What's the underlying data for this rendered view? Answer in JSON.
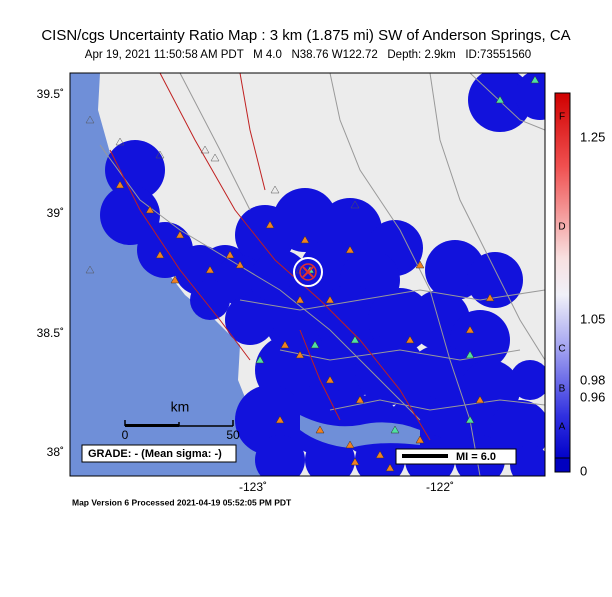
{
  "header": {
    "title": "CISN/cgs Uncertainty Ratio Map : 3 km (1.875 mi) SW of Anderson Springs, CA",
    "subtitle": "Apr 19, 2021 11:50:58 AM PDT   M 4.0   N38.76 W122.72   Depth: 2.9km   ID:73551560"
  },
  "map": {
    "lat_labels": [
      "39.5˚",
      "39˚",
      "38.5˚",
      "38˚"
    ],
    "lon_labels": [
      "-123˚",
      "-122˚"
    ],
    "scale_bar": {
      "unit": "km",
      "start": "0",
      "end": "50"
    },
    "grade": "GRADE: - (Mean sigma: -)",
    "legend": "MI = 6.0"
  },
  "colorbar": {
    "letters": [
      "F",
      "D",
      "C",
      "B",
      "A"
    ],
    "ticks": [
      "1.25",
      "1.05",
      "0.98",
      "0.96",
      "0"
    ]
  },
  "footer": "Map Version 6 Processed 2021-04-19 05:52:05 PM PDT"
}
